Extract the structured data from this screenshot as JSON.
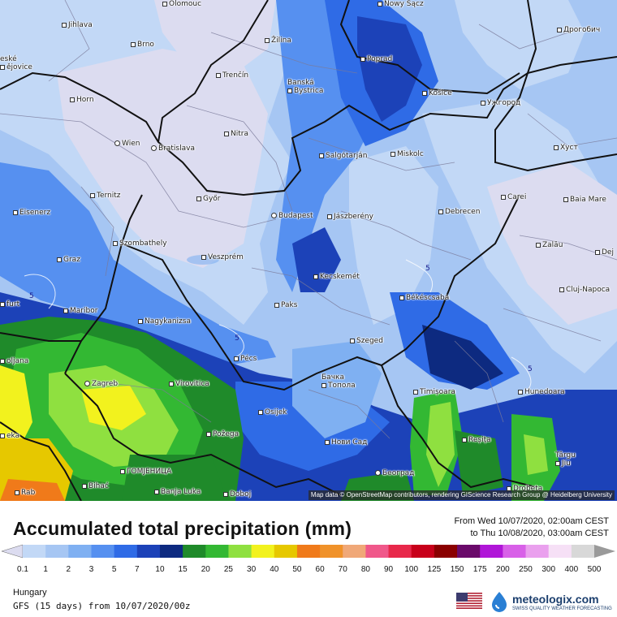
{
  "map": {
    "credits": "Map data © OpenStreetMap contributors, rendering GIScience Research Group @ Heidelberg University",
    "isolines": [
      "5",
      "5",
      "5",
      "5"
    ],
    "cities": [
      {
        "name": "Olomouc",
        "kind": "city"
      },
      {
        "name": "Nowy Sącz",
        "kind": "city"
      },
      {
        "name": "Jihlava",
        "kind": "city"
      },
      {
        "name": "Brno",
        "kind": "city"
      },
      {
        "name": "Žilina",
        "kind": "city"
      },
      {
        "name": "Poprad",
        "kind": "city"
      },
      {
        "name": "Дрогобич",
        "kind": "city"
      },
      {
        "name": "eské\nějovice",
        "kind": "city"
      },
      {
        "name": "Trenčín",
        "kind": "city"
      },
      {
        "name": "Banská\nBystrica",
        "kind": "city"
      },
      {
        "name": "Košice",
        "kind": "city"
      },
      {
        "name": "Ужгород",
        "kind": "city"
      },
      {
        "name": "Horn",
        "kind": "city"
      },
      {
        "name": "Nitra",
        "kind": "city"
      },
      {
        "name": "Wien",
        "kind": "cap"
      },
      {
        "name": "Bratislava",
        "kind": "cap"
      },
      {
        "name": "Salgótarján",
        "kind": "city"
      },
      {
        "name": "Miskolc",
        "kind": "city"
      },
      {
        "name": "Хуст",
        "kind": "city"
      },
      {
        "name": "Ternitz",
        "kind": "city"
      },
      {
        "name": "Győr",
        "kind": "city"
      },
      {
        "name": "Carei",
        "kind": "city"
      },
      {
        "name": "Baia Mare",
        "kind": "city"
      },
      {
        "name": "Eisenerz",
        "kind": "city"
      },
      {
        "name": "Budapest",
        "kind": "cap"
      },
      {
        "name": "Jászberény",
        "kind": "city"
      },
      {
        "name": "Debrecen",
        "kind": "city"
      },
      {
        "name": "Szombathely",
        "kind": "city"
      },
      {
        "name": "Zalău",
        "kind": "city"
      },
      {
        "name": "Graz",
        "kind": "city"
      },
      {
        "name": "Veszprém",
        "kind": "city"
      },
      {
        "name": "Dej",
        "kind": "city"
      },
      {
        "name": "Kecskemét",
        "kind": "city"
      },
      {
        "name": "Cluj-Napoca",
        "kind": "city"
      },
      {
        "name": "furt",
        "kind": "city"
      },
      {
        "name": "Paks",
        "kind": "city"
      },
      {
        "name": "Békéscsaba",
        "kind": "city"
      },
      {
        "name": "Maribor",
        "kind": "city"
      },
      {
        "name": "Nagykanizsa",
        "kind": "city"
      },
      {
        "name": "Szeged",
        "kind": "city"
      },
      {
        "name": "Pécs",
        "kind": "city"
      },
      {
        "name": "oljana",
        "kind": "city"
      },
      {
        "name": "Hunedoara",
        "kind": "city"
      },
      {
        "name": "Бачка\nТопола",
        "kind": "city"
      },
      {
        "name": "Zagreb",
        "kind": "cap"
      },
      {
        "name": "Virovitica",
        "kind": "city"
      },
      {
        "name": "Timișoara",
        "kind": "city"
      },
      {
        "name": "Osijek",
        "kind": "city"
      },
      {
        "name": "Reșița",
        "kind": "city"
      },
      {
        "name": "Požega",
        "kind": "city"
      },
      {
        "name": "eka",
        "kind": "city"
      },
      {
        "name": "Нови Сад",
        "kind": "city"
      },
      {
        "name": "Târgu\nJiu",
        "kind": "city"
      },
      {
        "name": "ГОМЈЕНИЦА",
        "kind": "city"
      },
      {
        "name": "Београд",
        "kind": "cap"
      },
      {
        "name": "Bihać",
        "kind": "city"
      },
      {
        "name": "Banja Luka",
        "kind": "city"
      },
      {
        "name": "Doboj",
        "kind": "city"
      },
      {
        "name": "Drobeta",
        "kind": "city"
      },
      {
        "name": "Rab",
        "kind": "city"
      }
    ]
  },
  "legend": {
    "title": "Accumulated total precipitation (mm)",
    "period_from": "From Wed 10/07/2020, 02:00am CEST",
    "period_to": "to Thu 10/08/2020, 03:00am CEST",
    "unit": "mm",
    "ticks": [
      "0.1",
      "1",
      "2",
      "3",
      "5",
      "7",
      "10",
      "15",
      "20",
      "25",
      "30",
      "40",
      "50",
      "60",
      "70",
      "80",
      "90",
      "100",
      "125",
      "150",
      "175",
      "200",
      "250",
      "300",
      "400",
      "500"
    ],
    "colors": [
      "#dcdcf0",
      "#c2d8f6",
      "#a6c6f3",
      "#7fb0f2",
      "#5690f0",
      "#2f6be6",
      "#1c42b8",
      "#0d2a80",
      "#1f8a2a",
      "#33b833",
      "#8fe040",
      "#f2f21e",
      "#e6c800",
      "#f07a1a",
      "#f0922a",
      "#f0a878",
      "#f0588a",
      "#e8284a",
      "#c8001a",
      "#8a0000",
      "#6a0a6a",
      "#b016d8",
      "#d860e8",
      "#eaa0ee",
      "#f6e0f6",
      "#d8d8d8",
      "#9a9a9a"
    ],
    "region": "Hungary",
    "model": "GFS (15 days) from 10/07/2020/00z"
  },
  "brand": {
    "name": "meteologix.com",
    "tagline": "SWISS QUALITY WEATHER FORECASTING"
  }
}
